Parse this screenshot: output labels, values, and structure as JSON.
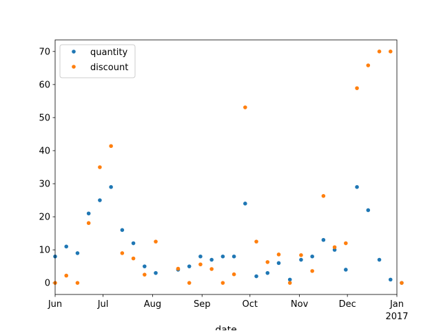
{
  "chart_data": {
    "type": "scatter",
    "title": "",
    "xlabel": "date",
    "ylabel": "",
    "x_tick_labels": [
      "Jun",
      "Jul",
      "Aug",
      "Sep",
      "Oct",
      "Nov",
      "Dec",
      "Jan"
    ],
    "x_tick_dates": [
      "2016-06-01",
      "2016-07-01",
      "2016-08-01",
      "2016-09-01",
      "2016-10-01",
      "2016-11-01",
      "2016-12-01",
      "2017-01-01"
    ],
    "x_offset_label": "2017",
    "xlim": [
      "2016-06-01",
      "2017-01-01"
    ],
    "ylim": [
      -3.5,
      73.5
    ],
    "y_ticks": [
      0,
      10,
      20,
      30,
      40,
      50,
      60,
      70
    ],
    "grid": false,
    "legend_position": "top-left",
    "x": [
      "2016-06-01",
      "2016-06-08",
      "2016-06-15",
      "2016-06-22",
      "2016-06-29",
      "2016-07-06",
      "2016-07-13",
      "2016-07-20",
      "2016-07-27",
      "2016-08-03",
      "2016-08-10",
      "2016-08-17",
      "2016-08-24",
      "2016-08-31",
      "2016-09-07",
      "2016-09-14",
      "2016-09-21",
      "2016-09-28",
      "2016-10-05",
      "2016-10-12",
      "2016-10-19",
      "2016-10-26",
      "2016-11-02",
      "2016-11-09",
      "2016-11-16",
      "2016-11-23",
      "2016-11-30",
      "2016-12-07",
      "2016-12-14",
      "2016-12-21",
      "2016-12-28",
      "2017-01-04"
    ],
    "series": [
      {
        "name": "quantity",
        "color": "#1f77b4",
        "values": [
          8,
          11,
          9,
          21,
          25,
          29,
          16,
          12,
          5,
          3,
          null,
          4,
          5,
          8,
          7,
          8,
          8,
          24,
          2,
          3,
          6,
          1,
          7,
          8,
          13,
          10,
          4,
          29,
          22,
          7,
          1,
          0
        ]
      },
      {
        "name": "discount",
        "color": "#ff7f0e",
        "values": [
          0,
          2.2,
          0,
          18.1,
          35,
          41.4,
          9,
          7.4,
          2.5,
          12.5,
          null,
          4.3,
          0,
          5.6,
          4.2,
          0,
          2.6,
          53.1,
          12.5,
          6.3,
          8.6,
          0,
          8.4,
          3.6,
          26.3,
          10.8,
          12,
          58.9,
          65.8,
          70,
          70,
          0
        ]
      }
    ]
  }
}
